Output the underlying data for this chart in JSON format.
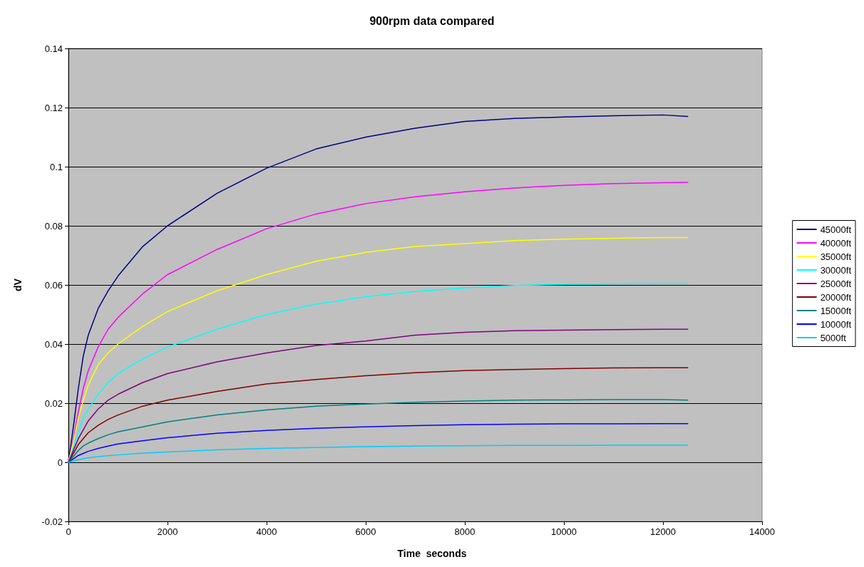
{
  "chart_data": {
    "type": "line",
    "title": "900rpm data compared",
    "xlabel": "Time  seconds",
    "ylabel": "dV",
    "x": [
      0,
      100,
      200,
      300,
      400,
      600,
      800,
      1000,
      1500,
      2000,
      3000,
      4000,
      5000,
      6000,
      7000,
      8000,
      9000,
      10000,
      11000,
      12000,
      12500
    ],
    "series": [
      {
        "name": "45000ft",
        "color": "#000080",
        "values": [
          0,
          0.012,
          0.025,
          0.036,
          0.043,
          0.052,
          0.058,
          0.063,
          0.073,
          0.08,
          0.091,
          0.0995,
          0.106,
          0.11,
          0.113,
          0.1153,
          0.1163,
          0.1168,
          0.1172,
          0.1175,
          0.117
        ]
      },
      {
        "name": "40000ft",
        "color": "#ff00ff",
        "values": [
          0,
          0.008,
          0.017,
          0.025,
          0.031,
          0.039,
          0.045,
          0.049,
          0.057,
          0.0635,
          0.072,
          0.079,
          0.084,
          0.0875,
          0.0898,
          0.0915,
          0.0928,
          0.0937,
          0.0943,
          0.0946,
          0.0947
        ]
      },
      {
        "name": "35000ft",
        "color": "#ffff00",
        "values": [
          0,
          0.007,
          0.015,
          0.021,
          0.026,
          0.033,
          0.037,
          0.04,
          0.046,
          0.051,
          0.058,
          0.0635,
          0.068,
          0.071,
          0.073,
          0.074,
          0.075,
          0.0755,
          0.0758,
          0.076,
          0.076
        ]
      },
      {
        "name": "30000ft",
        "color": "#00ffff",
        "values": [
          0,
          0.005,
          0.01,
          0.015,
          0.018,
          0.023,
          0.027,
          0.03,
          0.035,
          0.039,
          0.045,
          0.05,
          0.0535,
          0.056,
          0.0578,
          0.059,
          0.0598,
          0.0602,
          0.0604,
          0.0605,
          0.0605
        ]
      },
      {
        "name": "25000ft",
        "color": "#800080",
        "values": [
          0,
          0.004,
          0.008,
          0.011,
          0.014,
          0.018,
          0.021,
          0.023,
          0.027,
          0.03,
          0.034,
          0.037,
          0.0395,
          0.041,
          0.043,
          0.044,
          0.0445,
          0.0447,
          0.0449,
          0.045,
          0.045
        ]
      },
      {
        "name": "20000ft",
        "color": "#800000",
        "values": [
          0,
          0.003,
          0.006,
          0.008,
          0.01,
          0.0125,
          0.0145,
          0.016,
          0.019,
          0.021,
          0.024,
          0.0265,
          0.028,
          0.0293,
          0.0303,
          0.031,
          0.0314,
          0.0317,
          0.0319,
          0.032,
          0.032
        ]
      },
      {
        "name": "15000ft",
        "color": "#008080",
        "values": [
          0,
          0.002,
          0.004,
          0.0055,
          0.0065,
          0.008,
          0.0093,
          0.0103,
          0.012,
          0.0137,
          0.016,
          0.0177,
          0.019,
          0.0197,
          0.0203,
          0.0207,
          0.021,
          0.0211,
          0.0212,
          0.0212,
          0.021
        ]
      },
      {
        "name": "10000ft",
        "color": "#0000ff",
        "values": [
          0,
          0.0012,
          0.0023,
          0.003,
          0.0037,
          0.0047,
          0.0055,
          0.0062,
          0.0073,
          0.0083,
          0.0098,
          0.0108,
          0.0115,
          0.012,
          0.0124,
          0.0127,
          0.0129,
          0.013,
          0.013,
          0.0131,
          0.0131
        ]
      },
      {
        "name": "5000ft",
        "color": "#00ccff",
        "values": [
          0,
          0.0005,
          0.0009,
          0.0012,
          0.0015,
          0.0019,
          0.0022,
          0.0025,
          0.0031,
          0.0035,
          0.0042,
          0.0047,
          0.005,
          0.0053,
          0.0055,
          0.0056,
          0.0057,
          0.0057,
          0.0058,
          0.0058,
          0.0058
        ]
      }
    ],
    "xlim": [
      0,
      14000
    ],
    "xticks": [
      0,
      2000,
      4000,
      6000,
      8000,
      10000,
      12000,
      14000
    ],
    "ylim": [
      -0.02,
      0.14
    ],
    "yticks": [
      -0.02,
      0,
      0.02,
      0.04,
      0.06,
      0.08,
      0.1,
      0.12,
      0.14
    ],
    "grid": "y",
    "legend": "right",
    "marker": "none",
    "line_style": "solid"
  }
}
